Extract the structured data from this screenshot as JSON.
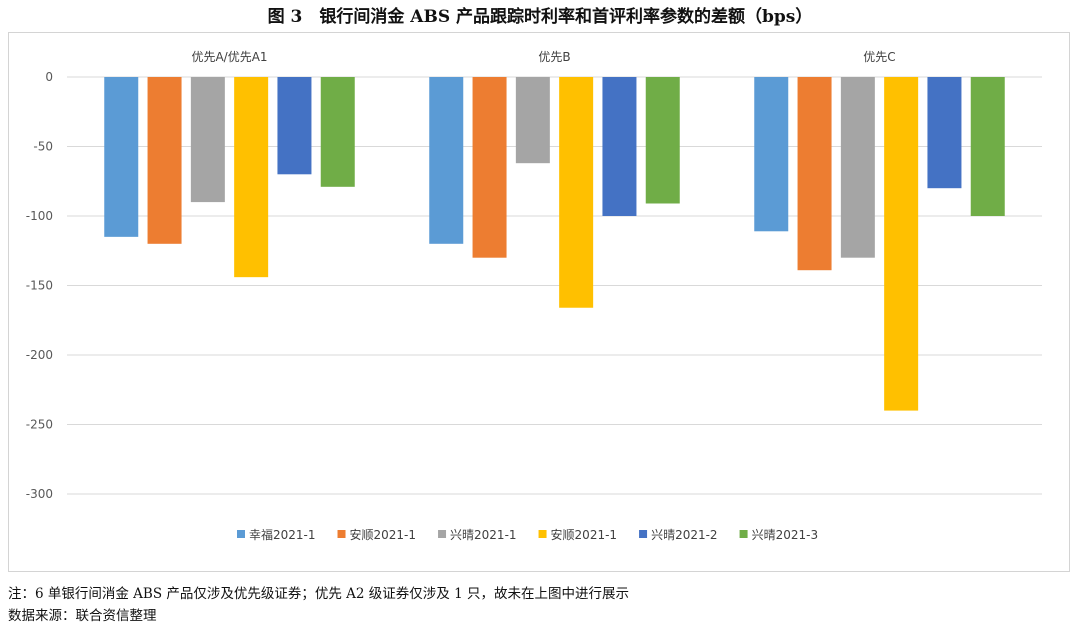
{
  "title": "图 3　银行间消金 ABS 产品跟踪时利率和首评利率参数的差额（bps）",
  "notes": {
    "note": "注：6 单银行间消金 ABS 产品仅涉及优先级证券；优先 A2 级证券仅涉及 1 只，故未在上图中进行展示",
    "source": "数据来源：联合资信整理"
  },
  "chart_data": {
    "type": "bar",
    "title": "",
    "xlabel": "",
    "ylabel": "",
    "categories": [
      "优先A/优先A1",
      "优先B",
      "优先C"
    ],
    "ylim": [
      -300,
      0
    ],
    "yticks": [
      0,
      -50,
      -100,
      -150,
      -200,
      -250,
      -300
    ],
    "grid": true,
    "legend_position": "bottom",
    "series": [
      {
        "name": "幸福2021-1",
        "color": "#5B9BD5",
        "values": [
          -115,
          -120,
          -111
        ]
      },
      {
        "name": "安顺2021-1",
        "color": "#ED7D31",
        "values": [
          -120,
          -130,
          -139
        ]
      },
      {
        "name": "兴晴2021-1",
        "color": "#A5A5A5",
        "values": [
          -90,
          -62,
          -130
        ]
      },
      {
        "name": "安顺2021-1",
        "color": "#FFC000",
        "values": [
          -144,
          -166,
          -240
        ]
      },
      {
        "name": "兴晴2021-2",
        "color": "#4472C4",
        "values": [
          -70,
          -100,
          -80
        ]
      },
      {
        "name": "兴晴2021-3",
        "color": "#70AD47",
        "values": [
          -79,
          -91,
          -100
        ]
      }
    ]
  }
}
